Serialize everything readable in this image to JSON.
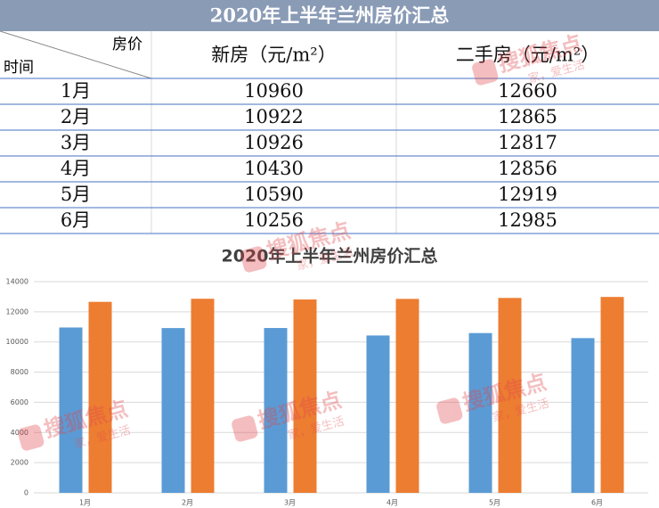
{
  "table": {
    "title": "2020年上半年兰州房价汇总",
    "corner_top": "房价",
    "corner_bottom": "时间",
    "headers": [
      "新房（元/m²）",
      "二手房（元/m²）"
    ],
    "rows": [
      [
        "1月",
        "10960",
        "12660"
      ],
      [
        "2月",
        "10922",
        "12865"
      ],
      [
        "3月",
        "10926",
        "12817"
      ],
      [
        "4月",
        "10430",
        "12856"
      ],
      [
        "5月",
        "10590",
        "12919"
      ],
      [
        "6月",
        "10256",
        "12985"
      ]
    ]
  },
  "chart_data": {
    "type": "bar",
    "title": "2020年上半年兰州房价汇总",
    "categories": [
      "1月",
      "2月",
      "3月",
      "4月",
      "5月",
      "6月"
    ],
    "series": [
      {
        "color": "#5b9bd5",
        "values": [
          10960,
          10922,
          10926,
          10430,
          10590,
          10256
        ]
      },
      {
        "color": "#ed7d31",
        "values": [
          12660,
          12865,
          12817,
          12856,
          12919,
          12985
        ]
      }
    ],
    "ylim": [
      0,
      14000
    ],
    "yticks": [
      0,
      2000,
      4000,
      6000,
      8000,
      10000,
      12000,
      14000
    ],
    "grid": true
  },
  "watermark": {
    "brand": "搜狐焦点",
    "slogan": "家，爱生活"
  }
}
